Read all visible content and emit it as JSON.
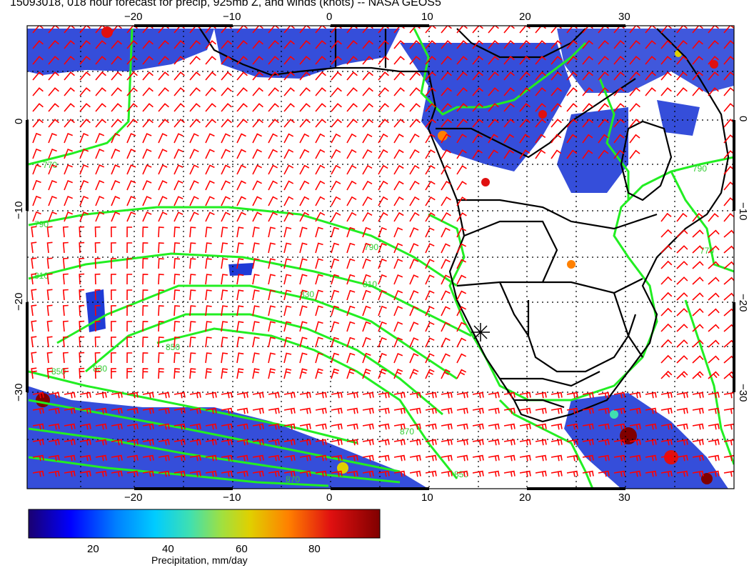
{
  "title": "15093018, 018 hour forecast for precip, 925mb Z, and winds (knots) -- NASA GEOS5",
  "map": {
    "lon_ticks_bottom": [
      "−20",
      "−10",
      "0",
      "10",
      "20",
      "30"
    ],
    "lon_ticks_top": [
      "−20",
      "−10",
      "0",
      "10",
      "20",
      "30"
    ],
    "lat_ticks_left": [
      "0",
      "−10",
      "−20",
      "−30"
    ],
    "lat_ticks_right": [
      "0",
      "−10",
      "−20",
      "−30"
    ],
    "contour_labels": [
      "770",
      "790",
      "810",
      "830",
      "850",
      "870",
      "790",
      "810",
      "830",
      "850",
      "870",
      "850",
      "770",
      "790"
    ],
    "wind_barb_color": "#ff0000",
    "contour_color": "#22ee22",
    "coast_color": "#000000",
    "marker": "station-marker"
  },
  "colorbar": {
    "label": "Precipitation, mm/day",
    "ticks": [
      "20",
      "40",
      "60",
      "80"
    ],
    "gradient_colors": [
      "#1a0070",
      "#0000ff",
      "#0080ff",
      "#00ccff",
      "#40e0b0",
      "#a0e040",
      "#e0d000",
      "#ff8000",
      "#e01010",
      "#800000"
    ]
  }
}
